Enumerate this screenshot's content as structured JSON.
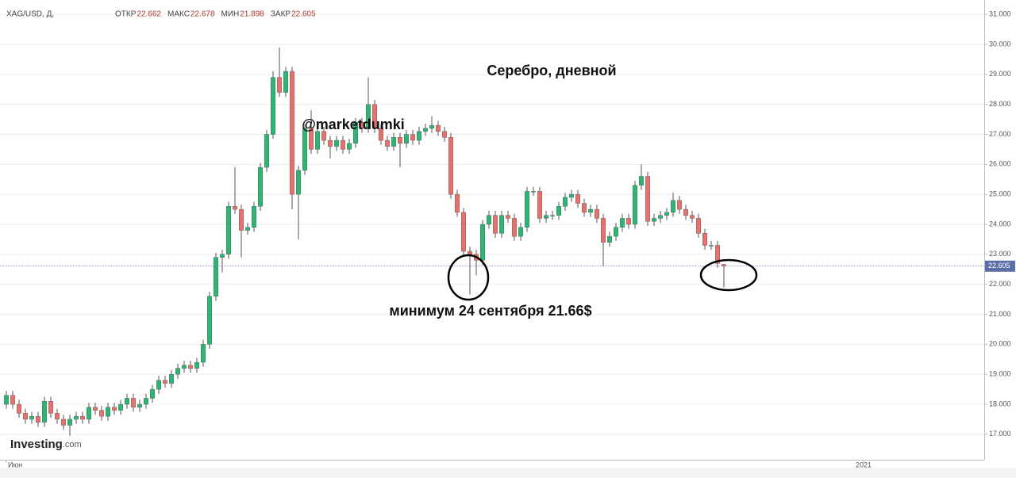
{
  "chart_data": {
    "type": "candlestick",
    "title": "Серебро, дневной",
    "header": {
      "symbol": "XAG/USD, Д,",
      "fields": [
        {
          "label": "ОТКР",
          "value": 22.662
        },
        {
          "label": "МАКС",
          "value": 22.678
        },
        {
          "label": "МИН",
          "value": 21.898
        },
        {
          "label": "ЗАКР",
          "value": 22.605
        }
      ]
    },
    "annotations": [
      "@marketdumki",
      "минимум 24 сентября 21.66$"
    ],
    "watermark": [
      "Investing",
      ".com"
    ],
    "up_color": "#2bb673",
    "down_color": "#e8716d",
    "last_price": 22.605,
    "ylim": [
      16.15,
      31.48
    ],
    "yticks": [
      {
        "value": 17,
        "label": "17.000"
      },
      {
        "value": 18,
        "label": "18.000"
      },
      {
        "value": 19,
        "label": "19.000"
      },
      {
        "value": 20,
        "label": "20.000"
      },
      {
        "value": 21,
        "label": "21.000"
      },
      {
        "value": 22,
        "label": "22.000"
      },
      {
        "value": 23,
        "label": "23.000"
      },
      {
        "value": 24,
        "label": "24.000"
      },
      {
        "value": 25,
        "label": "25.000"
      },
      {
        "value": 26,
        "label": "26.000"
      },
      {
        "value": 27,
        "label": "27.000"
      },
      {
        "value": 28,
        "label": "28.000"
      },
      {
        "value": 29,
        "label": "29.000"
      },
      {
        "value": 30,
        "label": "30.000"
      },
      {
        "value": 31,
        "label": "31.000"
      }
    ],
    "grid": true,
    "xlim": [
      -1,
      154
    ],
    "xticks": [
      {
        "value": 0,
        "label": "Июн"
      },
      {
        "value": 135,
        "label": "2021"
      }
    ],
    "open": [
      18.0,
      18.3,
      18.0,
      17.7,
      17.5,
      17.6,
      17.4,
      18.1,
      17.7,
      17.5,
      17.3,
      17.5,
      17.6,
      17.5,
      17.9,
      17.8,
      17.6,
      17.9,
      17.8,
      18.0,
      18.2,
      17.9,
      18.0,
      18.2,
      18.5,
      18.8,
      18.7,
      19.0,
      19.2,
      19.3,
      19.2,
      19.4,
      20.0,
      21.6,
      22.9,
      23.0,
      24.6,
      24.5,
      23.8,
      23.9,
      24.6,
      25.9,
      27.0,
      28.9,
      28.4,
      29.1,
      25.0,
      25.8,
      27.2,
      26.5,
      27.1,
      26.8,
      26.6,
      26.8,
      26.5,
      26.7,
      27.4,
      27.2,
      28.0,
      27.2,
      26.8,
      26.6,
      26.9,
      26.7,
      27.0,
      26.8,
      27.1,
      27.2,
      27.3,
      27.1,
      26.9,
      25.0,
      24.4,
      23.1,
      23.0,
      22.8,
      24.0,
      24.3,
      23.7,
      24.3,
      24.2,
      23.6,
      23.9,
      25.1,
      25.1,
      24.2,
      24.3,
      24.3,
      24.6,
      24.9,
      25.0,
      24.7,
      24.4,
      24.5,
      24.2,
      23.4,
      23.6,
      23.9,
      24.2,
      24.0,
      25.3,
      25.6,
      24.1,
      24.2,
      24.3,
      24.4,
      24.8,
      24.5,
      24.3,
      24.2,
      23.7,
      23.3,
      23.3,
      22.662
    ],
    "high": [
      18.45,
      18.45,
      18.15,
      17.85,
      17.75,
      17.75,
      18.25,
      18.25,
      17.85,
      17.65,
      17.65,
      17.75,
      17.75,
      18.05,
      18.05,
      17.95,
      18.05,
      18.05,
      18.15,
      18.35,
      18.35,
      18.15,
      18.35,
      18.65,
      18.95,
      18.95,
      19.15,
      19.35,
      19.45,
      19.45,
      19.55,
      20.15,
      21.75,
      23.05,
      23.15,
      24.75,
      25.9,
      24.65,
      24.05,
      24.75,
      26.05,
      27.15,
      29.1,
      29.9,
      29.25,
      29.25,
      25.95,
      27.35,
      27.8,
      27.25,
      27.25,
      26.95,
      26.95,
      26.95,
      26.85,
      27.55,
      27.55,
      28.9,
      28.15,
      27.35,
      26.95,
      27.05,
      27.05,
      27.15,
      27.15,
      27.25,
      27.35,
      27.6,
      27.45,
      27.25,
      27.05,
      25.15,
      24.55,
      23.25,
      23.15,
      24.15,
      24.45,
      24.45,
      24.45,
      24.45,
      24.35,
      24.05,
      25.25,
      25.25,
      25.25,
      24.45,
      24.45,
      24.75,
      25.05,
      25.15,
      25.15,
      24.85,
      24.65,
      24.65,
      24.35,
      23.75,
      24.05,
      24.35,
      24.35,
      25.45,
      26.0,
      25.75,
      24.35,
      24.45,
      24.55,
      25.05,
      24.95,
      24.65,
      24.45,
      24.35,
      23.85,
      23.45,
      23.45,
      22.678
    ],
    "low": [
      17.85,
      17.85,
      17.55,
      17.35,
      17.35,
      17.25,
      17.25,
      17.55,
      17.35,
      17.15,
      16.95,
      17.35,
      17.35,
      17.35,
      17.65,
      17.45,
      17.45,
      17.65,
      17.65,
      17.85,
      17.75,
      17.75,
      17.85,
      18.05,
      18.35,
      18.55,
      18.55,
      18.85,
      19.05,
      19.05,
      19.05,
      19.25,
      19.85,
      21.45,
      22.4,
      22.85,
      24.35,
      22.9,
      23.65,
      23.75,
      24.45,
      25.75,
      26.85,
      28.25,
      28.25,
      24.5,
      23.5,
      25.65,
      26.35,
      26.35,
      26.65,
      26.2,
      26.45,
      26.35,
      26.35,
      26.55,
      27.05,
      27.05,
      27.05,
      26.65,
      26.45,
      26.45,
      25.9,
      26.55,
      26.65,
      26.65,
      26.95,
      27.05,
      26.95,
      26.75,
      24.85,
      24.25,
      22.95,
      21.66,
      22.3,
      22.65,
      23.85,
      23.55,
      23.55,
      24.05,
      23.45,
      23.45,
      23.75,
      24.95,
      24.05,
      24.05,
      24.15,
      24.15,
      24.45,
      24.75,
      24.55,
      24.25,
      24.25,
      24.05,
      22.6,
      23.25,
      23.45,
      23.75,
      23.85,
      23.85,
      25.15,
      23.95,
      23.95,
      24.05,
      24.15,
      24.25,
      24.35,
      24.15,
      24.05,
      23.55,
      23.15,
      23.15,
      22.55,
      21.898
    ],
    "close": [
      18.3,
      18.0,
      17.7,
      17.5,
      17.6,
      17.4,
      18.1,
      17.7,
      17.5,
      17.3,
      17.5,
      17.6,
      17.5,
      17.9,
      17.8,
      17.6,
      17.9,
      17.8,
      18.0,
      18.2,
      17.9,
      18.0,
      18.2,
      18.5,
      18.8,
      18.7,
      19.0,
      19.2,
      19.3,
      19.2,
      19.4,
      20.0,
      21.6,
      22.9,
      23.0,
      24.6,
      24.5,
      23.8,
      23.9,
      24.6,
      25.9,
      27.0,
      28.9,
      28.4,
      29.1,
      25.0,
      25.8,
      27.2,
      26.5,
      27.1,
      26.8,
      26.6,
      26.8,
      26.5,
      26.7,
      27.4,
      27.2,
      28.0,
      27.2,
      26.8,
      26.6,
      26.9,
      26.7,
      27.0,
      26.8,
      27.1,
      27.2,
      27.3,
      27.1,
      26.9,
      25.0,
      24.4,
      23.1,
      23.0,
      22.8,
      24.0,
      24.3,
      23.7,
      24.3,
      24.2,
      23.6,
      23.9,
      25.1,
      25.1,
      24.2,
      24.3,
      24.3,
      24.6,
      24.9,
      25.0,
      24.7,
      24.4,
      24.5,
      24.2,
      23.4,
      23.6,
      23.9,
      24.2,
      24.0,
      25.3,
      25.6,
      24.1,
      24.2,
      24.3,
      24.4,
      24.8,
      24.5,
      24.3,
      24.2,
      23.7,
      23.3,
      23.3,
      22.7,
      22.605
    ]
  }
}
